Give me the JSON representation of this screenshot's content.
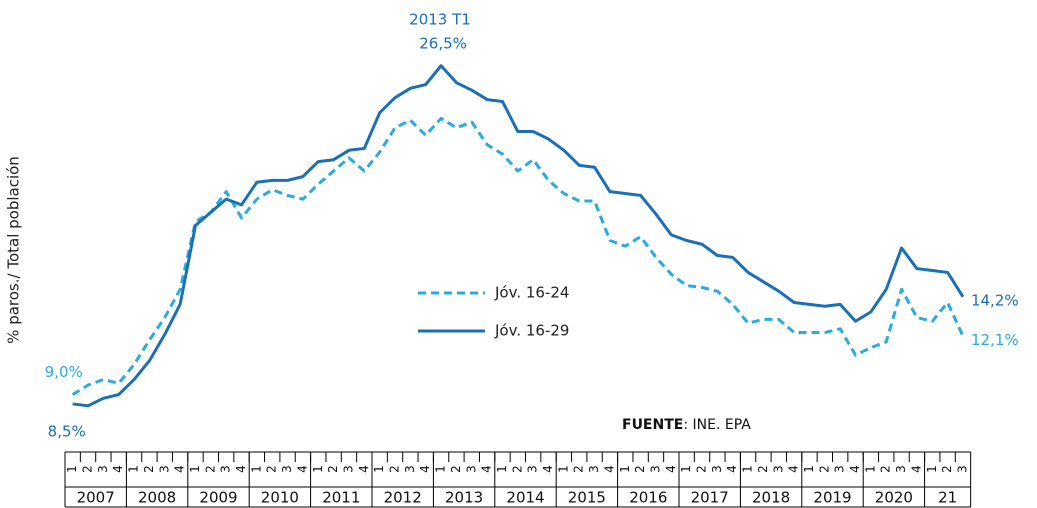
{
  "chart_data": {
    "type": "line",
    "y_label": "% paros./ Total población",
    "peak_annotation": "2013 T1",
    "source": {
      "label": "FUENTE",
      "text": ": INE. EPA"
    },
    "categories": [
      "1",
      "2",
      "3",
      "4",
      "1",
      "2",
      "3",
      "4",
      "1",
      "2",
      "3",
      "4",
      "1",
      "2",
      "3",
      "4",
      "1",
      "2",
      "3",
      "4",
      "1",
      "2",
      "3",
      "4",
      "1",
      "2",
      "3",
      "4",
      "1",
      "2",
      "3",
      "4",
      "1",
      "2",
      "3",
      "4",
      "1",
      "2",
      "3",
      "4",
      "1",
      "2",
      "3",
      "4",
      "1",
      "2",
      "3",
      "4",
      "1",
      "2",
      "3",
      "4",
      "1",
      "2",
      "3",
      "4",
      "1",
      "2",
      "3"
    ],
    "years": [
      "2007",
      "2008",
      "2009",
      "2010",
      "2011",
      "2012",
      "2013",
      "2014",
      "2015",
      "2016",
      "2017",
      "2018",
      "2019",
      "2020",
      "21"
    ],
    "ylim": [
      5,
      30
    ],
    "grid": false,
    "series": [
      {
        "name": "Jóv. 16-24",
        "color": "#29abe2",
        "dashed": true,
        "values": [
          9.0,
          9.5,
          9.8,
          9.6,
          10.6,
          11.9,
          13.1,
          14.6,
          18.2,
          18.7,
          19.8,
          18.4,
          19.4,
          19.9,
          19.6,
          19.4,
          20.2,
          20.9,
          21.6,
          20.9,
          21.9,
          23.2,
          23.6,
          22.8,
          23.7,
          23.2,
          23.5,
          22.3,
          21.8,
          20.9,
          21.5,
          20.4,
          19.7,
          19.3,
          19.3,
          17.2,
          16.9,
          17.4,
          16.3,
          15.4,
          14.8,
          14.7,
          14.5,
          13.8,
          12.8,
          13.0,
          13.0,
          12.3,
          12.3,
          12.3,
          12.5,
          11.1,
          11.5,
          11.8,
          14.6,
          13.1,
          12.9,
          13.9,
          12.1
        ],
        "value_labels": [
          "9,0%",
          null,
          null,
          null,
          null,
          null,
          null,
          null,
          null,
          null,
          null,
          null,
          null,
          null,
          null,
          null,
          null,
          null,
          null,
          null,
          null,
          null,
          null,
          null,
          null,
          null,
          null,
          null,
          null,
          null,
          null,
          null,
          null,
          null,
          null,
          null,
          null,
          null,
          null,
          null,
          null,
          null,
          null,
          null,
          null,
          null,
          null,
          null,
          null,
          null,
          null,
          null,
          null,
          null,
          null,
          null,
          null,
          null,
          "12,1%"
        ]
      },
      {
        "name": "Jóv. 16-29",
        "color": "#1a6fb5",
        "dashed": false,
        "values": [
          8.5,
          8.4,
          8.8,
          9.0,
          9.8,
          10.8,
          12.2,
          13.8,
          18.0,
          18.7,
          19.4,
          19.1,
          20.3,
          20.4,
          20.4,
          20.6,
          21.4,
          21.5,
          22.0,
          22.1,
          24.0,
          24.8,
          25.3,
          25.5,
          26.5,
          25.6,
          25.2,
          24.7,
          24.6,
          23.0,
          23.0,
          22.6,
          22.0,
          21.2,
          21.1,
          19.8,
          19.7,
          19.6,
          18.6,
          17.5,
          17.2,
          17.0,
          16.4,
          16.3,
          15.5,
          15.0,
          14.5,
          13.9,
          13.8,
          13.7,
          13.8,
          12.9,
          13.4,
          14.6,
          16.8,
          15.7,
          15.6,
          15.5,
          14.2
        ],
        "value_labels": [
          "8,5%",
          null,
          null,
          null,
          null,
          null,
          null,
          null,
          null,
          null,
          null,
          null,
          null,
          null,
          null,
          null,
          null,
          null,
          null,
          null,
          null,
          null,
          null,
          null,
          "26,5%",
          null,
          null,
          null,
          null,
          null,
          null,
          null,
          null,
          null,
          null,
          null,
          null,
          null,
          null,
          null,
          null,
          null,
          null,
          null,
          null,
          null,
          null,
          null,
          null,
          null,
          null,
          null,
          null,
          null,
          null,
          null,
          null,
          null,
          "14,2%"
        ]
      }
    ]
  }
}
